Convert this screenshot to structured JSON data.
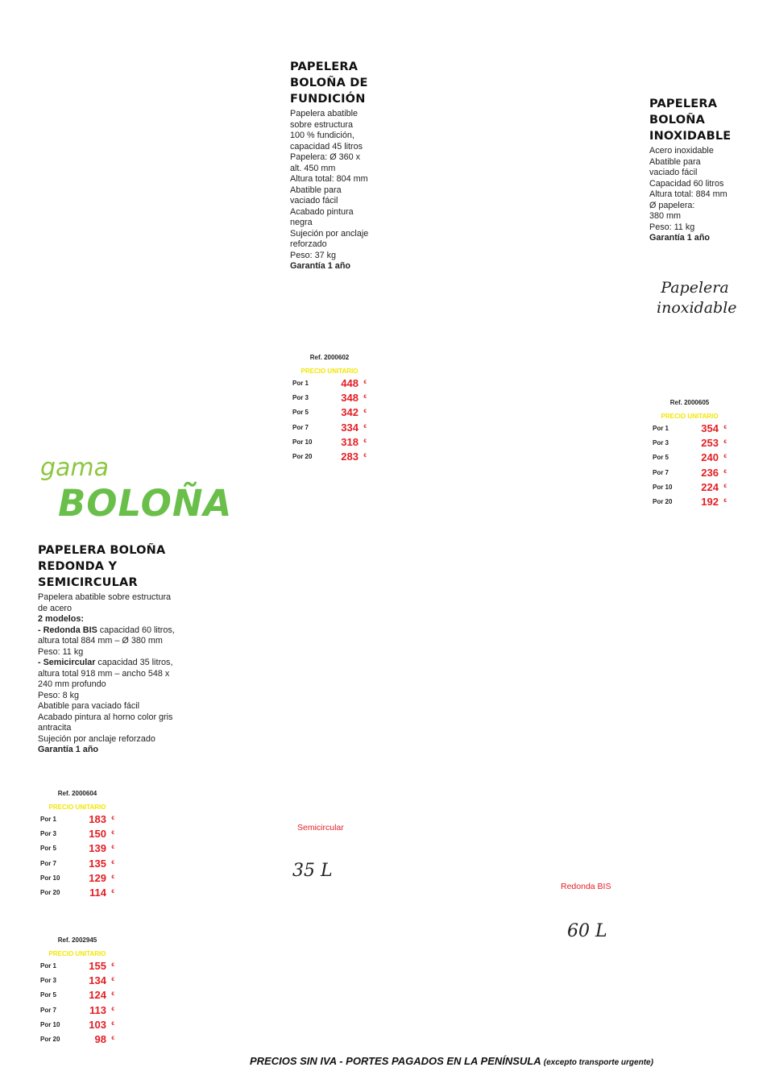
{
  "fundicion": {
    "title": "PAPELERA BOLOÑA DE FUNDICIÓN",
    "lines": [
      "Papelera abatible",
      "sobre estructura",
      "100 % fundición,",
      "capacidad 45 litros",
      "Papelera: Ø 360 x",
      "alt. 450 mm",
      "Altura total: 804 mm",
      "Abatible para",
      "vaciado fácil",
      "Acabado pintura",
      "negra",
      "Sujeción por anclaje",
      "reforzado",
      "Peso: 37 kg"
    ],
    "warranty": "Garantía 1 año",
    "table": {
      "ref": "Ref. 2000602",
      "header": "PRECIO UNITARIO",
      "rows": [
        {
          "label": "Por 1",
          "price": "448"
        },
        {
          "label": "Por 3",
          "price": "348"
        },
        {
          "label": "Por 5",
          "price": "342"
        },
        {
          "label": "Por 7",
          "price": "334"
        },
        {
          "label": "Por 10",
          "price": "318"
        },
        {
          "label": "Por 20",
          "price": "283"
        }
      ]
    }
  },
  "inoxidable": {
    "title": "PAPELERA BOLOÑA INOXIDABLE",
    "lines": [
      "Acero inoxidable",
      "Abatible para",
      "vaciado fácil",
      "Capacidad 60 litros",
      "Altura total: 884 mm",
      "Ø papelera:",
      "380 mm",
      "Peso: 11 kg"
    ],
    "warranty": "Garantía 1 año",
    "script_label_1": "Papelera",
    "script_label_2": "inoxidable",
    "table": {
      "ref": "Ref. 2000605",
      "header": "PRECIO UNITARIO",
      "rows": [
        {
          "label": "Por 1",
          "price": "354"
        },
        {
          "label": "Por 3",
          "price": "253"
        },
        {
          "label": "Por 5",
          "price": "240"
        },
        {
          "label": "Por 7",
          "price": "236"
        },
        {
          "label": "Por 10",
          "price": "224"
        },
        {
          "label": "Por 20",
          "price": "192"
        }
      ]
    }
  },
  "gama": {
    "word": "gama",
    "name": "BOLOÑA"
  },
  "redonda": {
    "title": "PAPELERA BOLOÑA REDONDA Y SEMICIRCULAR",
    "intro": "Papelera abatible sobre estructura de acero",
    "models_heading": "2 modelos:",
    "model1_name": "- Redonda BIS",
    "model1_text": " capacidad 60 litros, altura total 884 mm – Ø 380 mm",
    "model1_weight": "Peso: 11 kg",
    "model2_name": "- Semicircular",
    "model2_text": " capacidad 35 litros, altura total 918 mm – ancho 548 x 240 mm profundo",
    "model2_weight": "Peso: 8 kg",
    "extra_lines": [
      "Abatible para vaciado fácil",
      "Acabado pintura al horno color gris antracita",
      "Sujeción por anclaje reforzado"
    ],
    "warranty": "Garantía 1 año",
    "table1": {
      "ref": "Ref. 2000604",
      "header": "PRECIO UNITARIO",
      "rows": [
        {
          "label": "Por 1",
          "price": "183"
        },
        {
          "label": "Por 3",
          "price": "150"
        },
        {
          "label": "Por 5",
          "price": "139"
        },
        {
          "label": "Por 7",
          "price": "135"
        },
        {
          "label": "Por 10",
          "price": "129"
        },
        {
          "label": "Por 20",
          "price": "114"
        }
      ]
    },
    "table2": {
      "ref": "Ref. 2002945",
      "header": "PRECIO UNITARIO",
      "rows": [
        {
          "label": "Por 1",
          "price": "155"
        },
        {
          "label": "Por 3",
          "price": "134"
        },
        {
          "label": "Por 5",
          "price": "124"
        },
        {
          "label": "Por 7",
          "price": "113"
        },
        {
          "label": "Por 10",
          "price": "103"
        },
        {
          "label": "Por 20",
          "price": "98"
        }
      ]
    }
  },
  "labels": {
    "semicircular": "Semicircular",
    "semicircular_cap": "35 L",
    "redonda_bis": "Redonda BIS",
    "redonda_cap": "60 L"
  },
  "currency": "€",
  "footer": {
    "main": "PRECIOS SIN IVA - PORTES PAGADOS EN LA PENÍNSULA",
    "note": "(excepto transporte urgente)"
  }
}
